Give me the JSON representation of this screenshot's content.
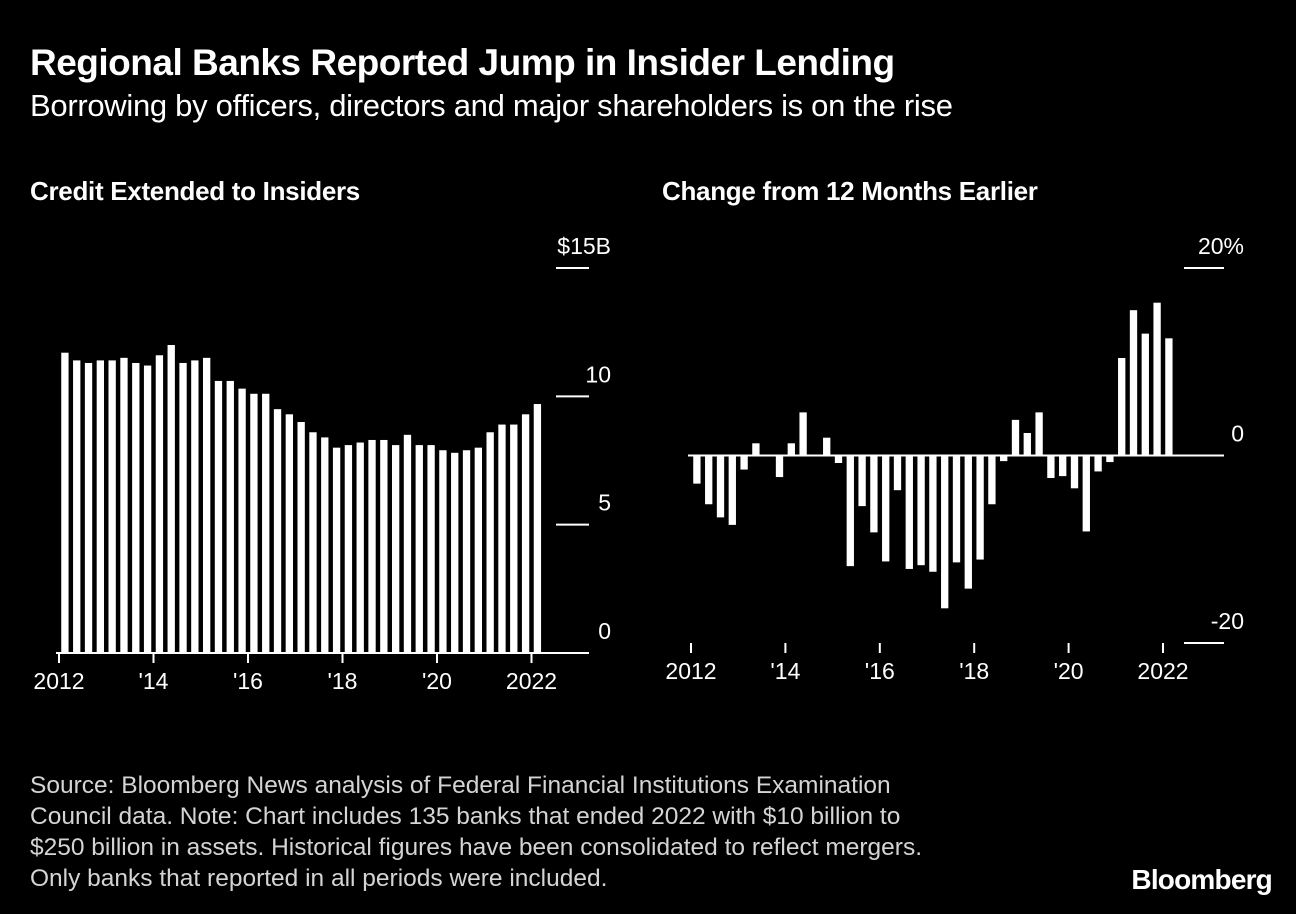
{
  "header": {
    "title": "Regional Banks Reported Jump in Insider Lending",
    "subtitle": "Borrowing by officers, directors and major shareholders is on the rise"
  },
  "chart_data": [
    {
      "type": "bar",
      "title": "Credit Extended to Insiders",
      "ylabel": "$B",
      "ylim": [
        0,
        15
      ],
      "yticks": [
        {
          "value": 15,
          "label": "$15B"
        },
        {
          "value": 10,
          "label": "10"
        },
        {
          "value": 5,
          "label": "5"
        },
        {
          "value": 0,
          "label": "0"
        }
      ],
      "xticks": [
        "2012",
        "'14",
        "'16",
        "'18",
        "'20",
        "2022"
      ],
      "tick_years": [
        2012,
        2014,
        2016,
        2018,
        2020,
        2022
      ],
      "start": {
        "year": 2012,
        "quarter": 1
      },
      "values": [
        11.7,
        11.4,
        11.3,
        11.4,
        11.4,
        11.5,
        11.3,
        11.2,
        11.6,
        12.0,
        11.3,
        11.4,
        11.5,
        10.6,
        10.6,
        10.3,
        10.1,
        10.1,
        9.5,
        9.3,
        9.0,
        8.6,
        8.4,
        8.0,
        8.1,
        8.2,
        8.3,
        8.3,
        8.1,
        8.5,
        8.1,
        8.1,
        7.9,
        7.8,
        7.9,
        8.0,
        8.6,
        8.9,
        8.9,
        9.3,
        9.7
      ]
    },
    {
      "type": "bar",
      "title": "Change from 12 Months Earlier",
      "ylabel": "%",
      "ylim": [
        -20,
        20
      ],
      "yticks": [
        {
          "value": 20,
          "label": "20%"
        },
        {
          "value": 0,
          "label": "0"
        },
        {
          "value": -20,
          "label": "-20"
        }
      ],
      "xticks": [
        "2012",
        "'14",
        "'16",
        "'18",
        "'20",
        "2022"
      ],
      "tick_years": [
        2012,
        2014,
        2016,
        2018,
        2020,
        2022
      ],
      "start": {
        "year": 2012,
        "quarter": 1
      },
      "values": [
        -3.0,
        -5.2,
        -6.6,
        -7.4,
        -1.5,
        1.3,
        0.0,
        -2.3,
        1.3,
        4.6,
        0.0,
        1.9,
        -0.8,
        -11.8,
        -5.4,
        -8.2,
        -11.3,
        -3.7,
        -12.1,
        -11.7,
        -12.4,
        -16.3,
        -11.4,
        -14.2,
        -11.1,
        -5.2,
        -0.6,
        3.8,
        2.4,
        4.6,
        -2.4,
        -2.2,
        -3.5,
        -8.1,
        -1.7,
        -0.7,
        10.4,
        15.5,
        13.0,
        16.3,
        12.5
      ]
    }
  ],
  "footer": {
    "lines": [
      "Source: Bloomberg News analysis of Federal Financial Institutions Examination",
      "Council data. Note: Chart includes 135 banks that ended 2022 with $10 billion to",
      "$250 billion in assets. Historical figures have been consolidated to reflect mergers.",
      "Only banks that reported in all periods were included."
    ]
  },
  "brand": "Bloomberg",
  "colors": {
    "background": "#000000",
    "bars": "#ffffff",
    "text": "#ffffff",
    "note": "#d4d4d4"
  }
}
